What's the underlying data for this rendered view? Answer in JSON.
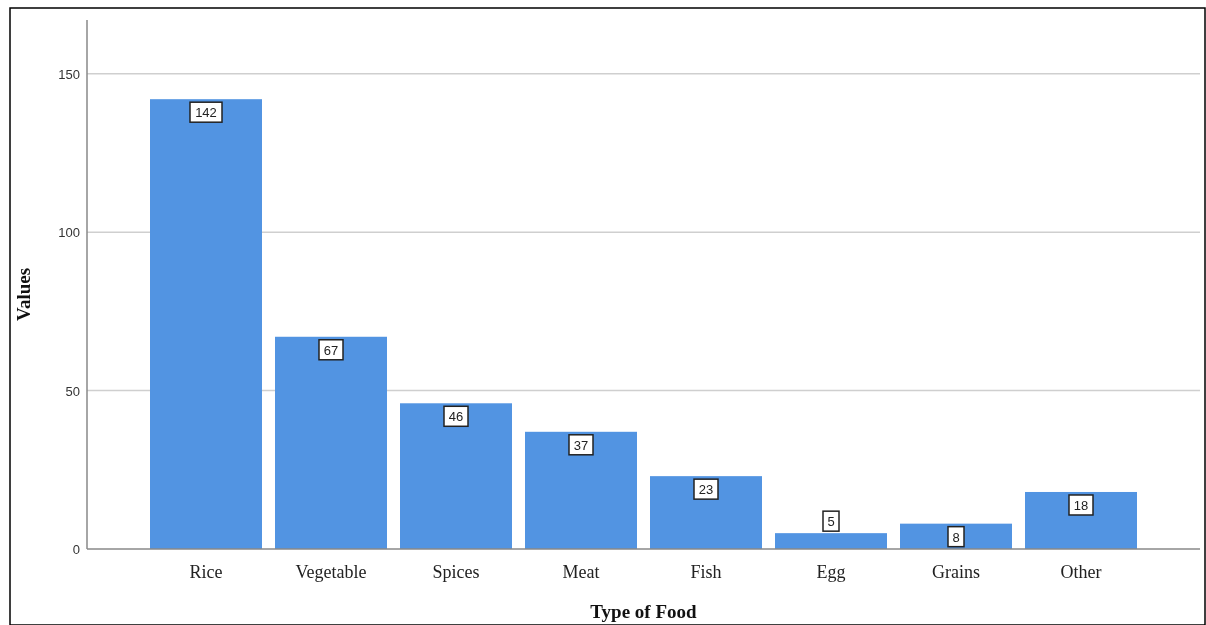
{
  "chart_data": {
    "type": "bar",
    "xlabel": "Type of Food",
    "ylabel": "Values",
    "categories": [
      "Rice",
      "Vegetable",
      "Spices",
      "Meat",
      "Fish",
      "Egg",
      "Grains",
      "Other"
    ],
    "values": [
      142,
      67,
      46,
      37,
      23,
      5,
      8,
      18
    ],
    "color": "#5294e2",
    "ylim": [
      0,
      167
    ],
    "yticks": [
      0,
      50,
      100,
      150
    ],
    "grid": "y",
    "data_labels": true
  }
}
